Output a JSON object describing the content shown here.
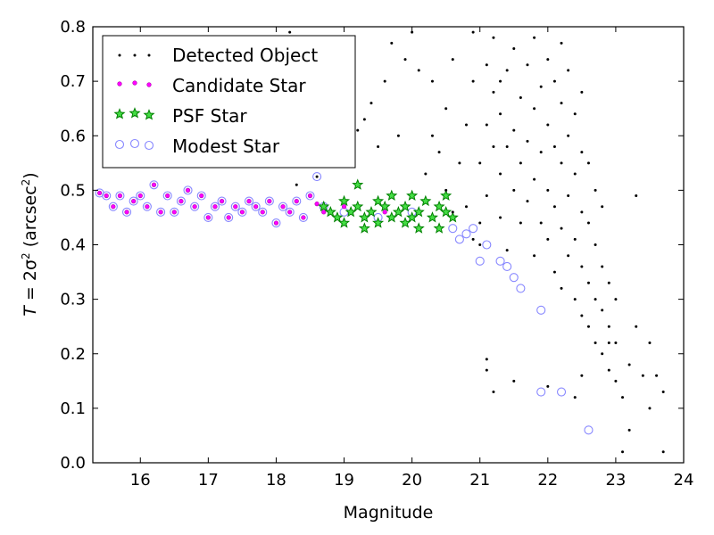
{
  "chart_data": {
    "type": "scatter",
    "xlabel": "Magnitude",
    "ylabel_parts": {
      "prefix": "T",
      "mid": " = 2σ",
      "sup": "2",
      "unit_open": " (arcsec",
      "unit_sup": "2",
      "unit_close": ")"
    },
    "xlim": [
      15.3,
      24.0
    ],
    "ylim": [
      0.0,
      0.8
    ],
    "xticks": [
      16,
      17,
      18,
      19,
      20,
      21,
      22,
      23,
      24
    ],
    "yticks": [
      0.0,
      0.1,
      0.2,
      0.3,
      0.4,
      0.5,
      0.6,
      0.7,
      0.8
    ],
    "ytick_labels": [
      "0.0",
      "0.1",
      "0.2",
      "0.3",
      "0.4",
      "0.5",
      "0.6",
      "0.7",
      "0.8"
    ],
    "legend_position": "top-left",
    "series": [
      {
        "name": "Detected Object",
        "marker": "dot",
        "color": "#000000",
        "points": [
          [
            18.2,
            0.79
          ],
          [
            18.6,
            0.525
          ],
          [
            18.3,
            0.51
          ],
          [
            19.2,
            0.61
          ],
          [
            19.3,
            0.63
          ],
          [
            19.5,
            0.58
          ],
          [
            19.4,
            0.66
          ],
          [
            19.6,
            0.7
          ],
          [
            19.7,
            0.77
          ],
          [
            19.8,
            0.6
          ],
          [
            19.9,
            0.74
          ],
          [
            20.0,
            0.79
          ],
          [
            20.1,
            0.72
          ],
          [
            20.2,
            0.53
          ],
          [
            20.3,
            0.6
          ],
          [
            20.3,
            0.7
          ],
          [
            20.4,
            0.57
          ],
          [
            20.5,
            0.5
          ],
          [
            20.5,
            0.65
          ],
          [
            20.6,
            0.74
          ],
          [
            20.7,
            0.55
          ],
          [
            20.8,
            0.62
          ],
          [
            20.8,
            0.47
          ],
          [
            20.9,
            0.7
          ],
          [
            20.9,
            0.79
          ],
          [
            21.0,
            0.44
          ],
          [
            21.0,
            0.55
          ],
          [
            21.1,
            0.62
          ],
          [
            21.1,
            0.73
          ],
          [
            21.1,
            0.49
          ],
          [
            21.2,
            0.58
          ],
          [
            21.2,
            0.68
          ],
          [
            21.2,
            0.78
          ],
          [
            21.3,
            0.45
          ],
          [
            21.3,
            0.53
          ],
          [
            21.3,
            0.64
          ],
          [
            21.4,
            0.72
          ],
          [
            21.4,
            0.58
          ],
          [
            21.4,
            0.39
          ],
          [
            21.5,
            0.5
          ],
          [
            21.5,
            0.61
          ],
          [
            21.5,
            0.76
          ],
          [
            21.6,
            0.44
          ],
          [
            21.6,
            0.55
          ],
          [
            21.6,
            0.67
          ],
          [
            21.7,
            0.73
          ],
          [
            21.7,
            0.48
          ],
          [
            21.7,
            0.59
          ],
          [
            21.8,
            0.38
          ],
          [
            21.8,
            0.52
          ],
          [
            21.8,
            0.65
          ],
          [
            21.8,
            0.78
          ],
          [
            21.9,
            0.44
          ],
          [
            21.9,
            0.57
          ],
          [
            21.9,
            0.69
          ],
          [
            22.0,
            0.41
          ],
          [
            22.0,
            0.5
          ],
          [
            22.0,
            0.62
          ],
          [
            22.0,
            0.74
          ],
          [
            22.1,
            0.35
          ],
          [
            22.1,
            0.47
          ],
          [
            22.1,
            0.58
          ],
          [
            22.1,
            0.7
          ],
          [
            22.2,
            0.32
          ],
          [
            22.2,
            0.43
          ],
          [
            22.2,
            0.55
          ],
          [
            22.2,
            0.66
          ],
          [
            22.2,
            0.77
          ],
          [
            22.3,
            0.38
          ],
          [
            22.3,
            0.49
          ],
          [
            22.3,
            0.6
          ],
          [
            22.3,
            0.72
          ],
          [
            22.4,
            0.3
          ],
          [
            22.4,
            0.41
          ],
          [
            22.4,
            0.53
          ],
          [
            22.4,
            0.64
          ],
          [
            22.5,
            0.27
          ],
          [
            22.5,
            0.36
          ],
          [
            22.5,
            0.46
          ],
          [
            22.5,
            0.57
          ],
          [
            22.5,
            0.68
          ],
          [
            22.6,
            0.25
          ],
          [
            22.6,
            0.33
          ],
          [
            22.6,
            0.44
          ],
          [
            22.6,
            0.55
          ],
          [
            22.7,
            0.22
          ],
          [
            22.7,
            0.3
          ],
          [
            22.7,
            0.4
          ],
          [
            22.7,
            0.5
          ],
          [
            22.8,
            0.2
          ],
          [
            22.8,
            0.28
          ],
          [
            22.8,
            0.36
          ],
          [
            22.8,
            0.47
          ],
          [
            22.9,
            0.17
          ],
          [
            22.9,
            0.25
          ],
          [
            22.9,
            0.33
          ],
          [
            23.0,
            0.15
          ],
          [
            23.0,
            0.22
          ],
          [
            23.0,
            0.3
          ],
          [
            23.1,
            0.12
          ],
          [
            23.1,
            0.02
          ],
          [
            23.2,
            0.06
          ],
          [
            23.2,
            0.18
          ],
          [
            23.3,
            0.25
          ],
          [
            23.3,
            0.49
          ],
          [
            23.4,
            0.16
          ],
          [
            23.5,
            0.1
          ],
          [
            23.5,
            0.22
          ],
          [
            23.6,
            0.16
          ],
          [
            23.7,
            0.02
          ],
          [
            23.7,
            0.13
          ],
          [
            21.1,
            0.19
          ],
          [
            21.1,
            0.17
          ],
          [
            21.2,
            0.13
          ],
          [
            21.5,
            0.15
          ],
          [
            22.0,
            0.14
          ],
          [
            22.4,
            0.12
          ],
          [
            22.5,
            0.16
          ],
          [
            22.9,
            0.22
          ],
          [
            21.3,
            0.7
          ],
          [
            20.6,
            0.46
          ],
          [
            20.9,
            0.41
          ],
          [
            21.0,
            0.4
          ]
        ]
      },
      {
        "name": "Candidate Star",
        "marker": "circle",
        "color": "#ff00ff",
        "points": [
          [
            15.4,
            0.495
          ],
          [
            15.5,
            0.49
          ],
          [
            15.6,
            0.47
          ],
          [
            15.7,
            0.49
          ],
          [
            15.8,
            0.46
          ],
          [
            15.9,
            0.48
          ],
          [
            16.0,
            0.49
          ],
          [
            16.1,
            0.47
          ],
          [
            16.2,
            0.51
          ],
          [
            16.3,
            0.46
          ],
          [
            16.4,
            0.49
          ],
          [
            16.5,
            0.46
          ],
          [
            16.6,
            0.48
          ],
          [
            16.7,
            0.5
          ],
          [
            16.8,
            0.47
          ],
          [
            16.9,
            0.49
          ],
          [
            17.0,
            0.45
          ],
          [
            17.1,
            0.47
          ],
          [
            17.2,
            0.48
          ],
          [
            17.3,
            0.45
          ],
          [
            17.4,
            0.47
          ],
          [
            17.5,
            0.46
          ],
          [
            17.6,
            0.48
          ],
          [
            17.7,
            0.47
          ],
          [
            17.8,
            0.46
          ],
          [
            17.9,
            0.48
          ],
          [
            18.0,
            0.44
          ],
          [
            18.1,
            0.47
          ],
          [
            18.2,
            0.46
          ],
          [
            18.3,
            0.48
          ],
          [
            18.4,
            0.45
          ],
          [
            18.5,
            0.49
          ],
          [
            18.6,
            0.475
          ],
          [
            18.7,
            0.46
          ],
          [
            19.0,
            0.47
          ],
          [
            19.3,
            0.45
          ],
          [
            19.6,
            0.46
          ],
          [
            19.9,
            0.47
          ]
        ]
      },
      {
        "name": "PSF Star",
        "marker": "star",
        "color": "#008000",
        "points": [
          [
            18.7,
            0.47
          ],
          [
            18.8,
            0.46
          ],
          [
            18.9,
            0.45
          ],
          [
            19.0,
            0.48
          ],
          [
            19.0,
            0.44
          ],
          [
            19.1,
            0.46
          ],
          [
            19.2,
            0.47
          ],
          [
            19.2,
            0.51
          ],
          [
            19.3,
            0.45
          ],
          [
            19.3,
            0.43
          ],
          [
            19.4,
            0.46
          ],
          [
            19.5,
            0.48
          ],
          [
            19.5,
            0.44
          ],
          [
            19.6,
            0.47
          ],
          [
            19.7,
            0.45
          ],
          [
            19.7,
            0.49
          ],
          [
            19.8,
            0.46
          ],
          [
            19.9,
            0.44
          ],
          [
            19.9,
            0.47
          ],
          [
            20.0,
            0.45
          ],
          [
            20.0,
            0.49
          ],
          [
            20.1,
            0.46
          ],
          [
            20.1,
            0.43
          ],
          [
            20.2,
            0.48
          ],
          [
            20.3,
            0.45
          ],
          [
            20.4,
            0.47
          ],
          [
            20.4,
            0.43
          ],
          [
            20.5,
            0.46
          ],
          [
            20.5,
            0.49
          ],
          [
            20.6,
            0.45
          ]
        ]
      },
      {
        "name": "Modest Star",
        "marker": "open-circle",
        "color": "#8888ff",
        "points": [
          [
            15.4,
            0.495
          ],
          [
            15.5,
            0.49
          ],
          [
            15.6,
            0.47
          ],
          [
            15.7,
            0.49
          ],
          [
            15.8,
            0.46
          ],
          [
            15.9,
            0.48
          ],
          [
            16.0,
            0.49
          ],
          [
            16.1,
            0.47
          ],
          [
            16.2,
            0.51
          ],
          [
            16.3,
            0.46
          ],
          [
            16.4,
            0.49
          ],
          [
            16.5,
            0.46
          ],
          [
            16.6,
            0.48
          ],
          [
            16.7,
            0.5
          ],
          [
            16.8,
            0.47
          ],
          [
            16.9,
            0.49
          ],
          [
            17.0,
            0.45
          ],
          [
            17.1,
            0.47
          ],
          [
            17.2,
            0.48
          ],
          [
            17.3,
            0.45
          ],
          [
            17.4,
            0.47
          ],
          [
            17.5,
            0.46
          ],
          [
            17.6,
            0.48
          ],
          [
            17.7,
            0.47
          ],
          [
            17.8,
            0.46
          ],
          [
            17.9,
            0.48
          ],
          [
            18.0,
            0.44
          ],
          [
            18.1,
            0.47
          ],
          [
            18.2,
            0.46
          ],
          [
            18.3,
            0.48
          ],
          [
            18.4,
            0.45
          ],
          [
            18.5,
            0.49
          ],
          [
            18.6,
            0.525
          ],
          [
            18.7,
            0.47
          ],
          [
            19.0,
            0.46
          ],
          [
            19.5,
            0.45
          ],
          [
            20.0,
            0.46
          ],
          [
            20.6,
            0.43
          ],
          [
            20.7,
            0.41
          ],
          [
            20.8,
            0.42
          ],
          [
            20.9,
            0.43
          ],
          [
            21.0,
            0.37
          ],
          [
            21.1,
            0.4
          ],
          [
            21.3,
            0.37
          ],
          [
            21.4,
            0.36
          ],
          [
            21.5,
            0.34
          ],
          [
            21.6,
            0.32
          ],
          [
            21.9,
            0.28
          ],
          [
            21.9,
            0.13
          ],
          [
            22.2,
            0.13
          ],
          [
            22.6,
            0.06
          ]
        ]
      }
    ]
  }
}
